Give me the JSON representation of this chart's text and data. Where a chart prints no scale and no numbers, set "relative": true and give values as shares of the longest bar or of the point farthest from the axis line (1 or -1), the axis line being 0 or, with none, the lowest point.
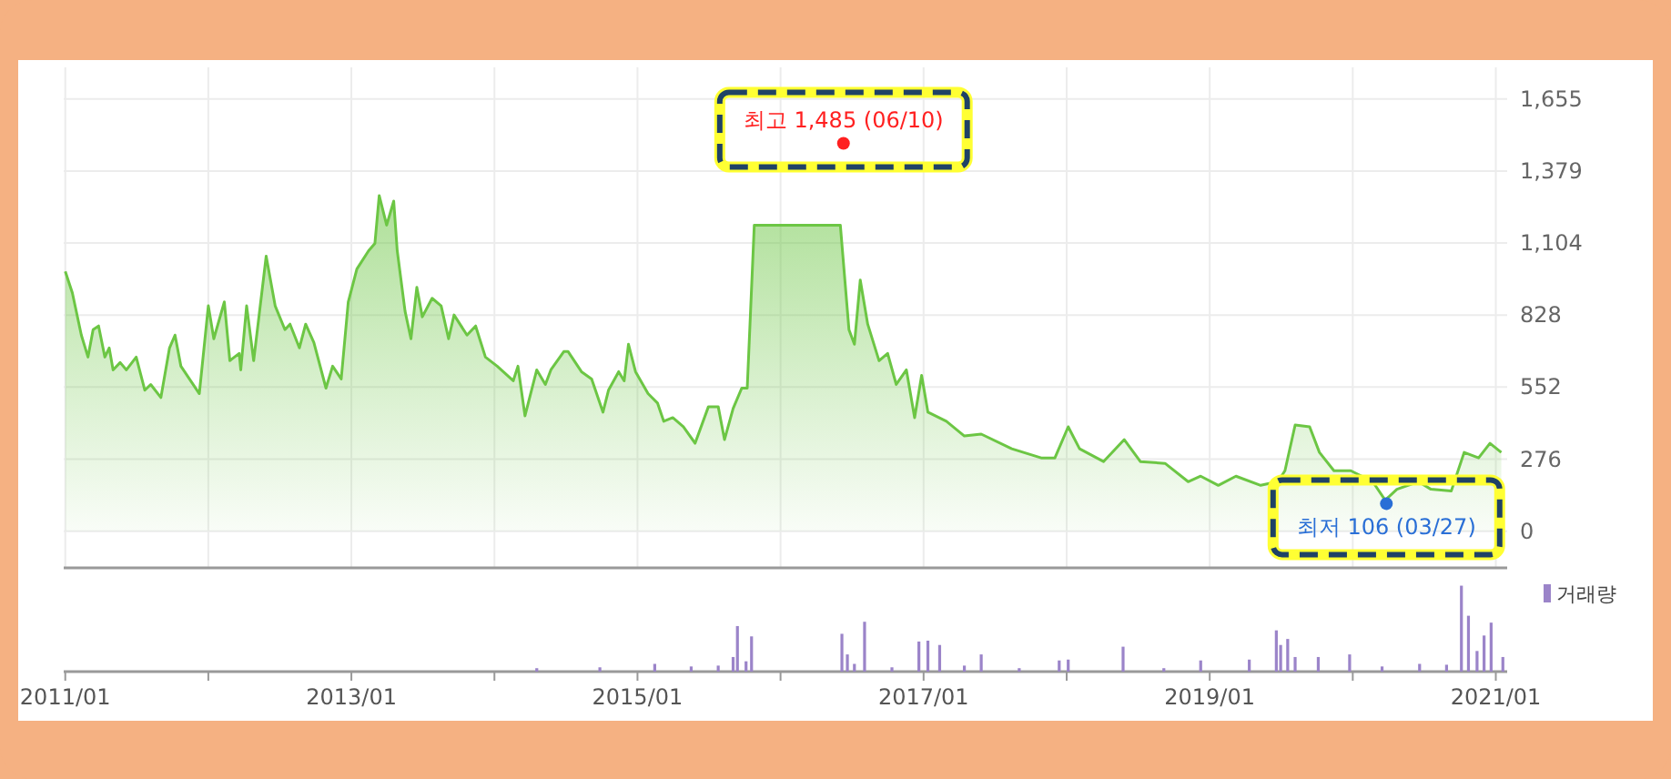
{
  "chart_data": [
    {
      "type": "area",
      "color": "#6cc644",
      "grid": true,
      "tick_labels": "y",
      "xlim": [
        "2010-12-28",
        "2021-01-30"
      ],
      "ylim": [
        -140,
        1776
      ],
      "xticks": [
        {
          "value": "2011-01-01",
          "label": null
        },
        {
          "value": "2012-01-01",
          "label": null
        },
        {
          "value": "2013-01-01",
          "label": null
        },
        {
          "value": "2014-01-01",
          "label": null
        },
        {
          "value": "2015-01-01",
          "label": null
        },
        {
          "value": "2016-01-01",
          "label": null
        },
        {
          "value": "2017-01-01",
          "label": null
        },
        {
          "value": "2018-01-01",
          "label": null
        },
        {
          "value": "2019-01-01",
          "label": null
        },
        {
          "value": "2020-01-01",
          "label": null
        },
        {
          "value": "2021-01-01",
          "label": null
        }
      ],
      "yticks": [
        {
          "value": 0,
          "label": "0"
        },
        {
          "value": 276,
          "label": "276"
        },
        {
          "value": 552,
          "label": "552"
        },
        {
          "value": 828,
          "label": "828"
        },
        {
          "value": 1104,
          "label": "1,104"
        },
        {
          "value": 1379,
          "label": "1,379"
        },
        {
          "value": 1655,
          "label": "1,655"
        }
      ],
      "x": [
        "2011-01-01",
        "2011-01-19",
        "2011-02-11",
        "2011-02-28",
        "2011-03-13",
        "2011-03-27",
        "2011-04-12",
        "2011-04-23",
        "2011-05-03",
        "2011-05-21",
        "2011-06-06",
        "2011-07-01",
        "2011-07-23",
        "2011-08-07",
        "2011-09-02",
        "2011-09-24",
        "2011-10-08",
        "2011-10-23",
        "2011-12-09",
        "2012-01-01",
        "2012-01-15",
        "2012-02-11",
        "2012-02-25",
        "2012-03-20",
        "2012-03-24",
        "2012-04-08",
        "2012-04-26",
        "2012-05-28",
        "2012-06-20",
        "2012-07-15",
        "2012-07-28",
        "2012-08-21",
        "2012-09-06",
        "2012-09-27",
        "2012-10-28",
        "2012-11-14",
        "2012-12-06",
        "2012-12-24",
        "2013-01-15",
        "2013-02-14",
        "2013-03-02",
        "2013-03-13",
        "2013-04-01",
        "2013-04-19",
        "2013-04-28",
        "2013-05-18",
        "2013-06-02",
        "2013-06-17",
        "2013-07-01",
        "2013-07-26",
        "2013-08-18",
        "2013-09-06",
        "2013-09-20",
        "2013-10-23",
        "2013-11-14",
        "2013-12-09",
        "2014-01-08",
        "2014-02-18",
        "2014-03-02",
        "2014-03-20",
        "2014-04-19",
        "2014-05-11",
        "2014-05-25",
        "2014-06-27",
        "2014-07-08",
        "2014-08-11",
        "2014-09-06",
        "2014-10-05",
        "2014-10-19",
        "2014-11-14",
        "2014-11-28",
        "2014-12-09",
        "2014-12-27",
        "2015-01-28",
        "2015-02-21",
        "2015-03-09",
        "2015-04-01",
        "2015-04-28",
        "2015-05-28",
        "2015-07-01",
        "2015-07-26",
        "2015-08-11",
        "2015-09-02",
        "2015-09-24",
        "2015-10-08",
        "2015-10-26",
        "2016-06-02",
        "2016-06-24",
        "2016-07-08",
        "2016-07-23",
        "2016-08-11",
        "2016-09-09",
        "2016-10-01",
        "2016-10-23",
        "2016-11-18",
        "2016-12-09",
        "2016-12-27",
        "2017-01-12",
        "2017-02-28",
        "2017-04-15",
        "2017-05-28",
        "2017-08-14",
        "2017-10-28",
        "2017-12-02",
        "2018-01-05",
        "2018-02-03",
        "2018-04-05",
        "2018-05-28",
        "2018-07-08",
        "2018-09-09",
        "2018-11-07",
        "2018-12-09",
        "2019-01-23",
        "2019-03-09",
        "2019-05-11",
        "2019-06-24",
        "2019-07-12",
        "2019-08-07",
        "2019-09-13",
        "2019-10-08",
        "2019-11-14",
        "2019-12-27",
        "2020-02-21",
        "2020-03-24",
        "2020-04-23",
        "2020-06-17",
        "2020-07-19",
        "2020-09-09",
        "2020-10-12",
        "2020-11-18",
        "2020-12-17",
        "2021-01-15"
      ],
      "values": [
        995,
        913,
        751,
        667,
        772,
        786,
        667,
        702,
        618,
        646,
        618,
        667,
        540,
        562,
        512,
        702,
        751,
        632,
        527,
        863,
        737,
        878,
        653,
        681,
        618,
        863,
        653,
        1053,
        863,
        772,
        793,
        702,
        793,
        723,
        548,
        632,
        583,
        878,
        1004,
        1074,
        1102,
        1285,
        1172,
        1264,
        1074,
        842,
        737,
        934,
        821,
        892,
        863,
        737,
        828,
        751,
        786,
        667,
        632,
        576,
        632,
        442,
        618,
        562,
        618,
        688,
        688,
        611,
        583,
        456,
        540,
        611,
        576,
        716,
        611,
        527,
        491,
        421,
        435,
        400,
        337,
        477,
        477,
        351,
        470,
        548,
        548,
        1172,
        1172,
        772,
        716,
        962,
        793,
        653,
        681,
        562,
        618,
        435,
        597,
        456,
        421,
        365,
        372,
        316,
        281,
        281,
        400,
        316,
        267,
        351,
        267,
        260,
        190,
        211,
        176,
        211,
        176,
        190,
        232,
        407,
        400,
        302,
        232,
        232,
        190,
        119,
        161,
        190,
        161,
        154,
        302,
        281,
        337,
        302
      ],
      "annotations": [
        {
          "text": "최고 1,485 (06/10)",
          "x": "2016-06-10",
          "y": 1485
        },
        {
          "text": "최저 106 (03/27)",
          "x": "2020-03-27",
          "y": 106
        }
      ]
    },
    {
      "type": "bar",
      "relative": true,
      "tick_labels": "x",
      "legend": "top right",
      "xlim": [
        "2010-12-28",
        "2021-01-30"
      ],
      "xticks": [
        {
          "value": "2011-01-01",
          "label": "2011/01"
        },
        {
          "value": "2012-01-01",
          "label": null
        },
        {
          "value": "2013-01-01",
          "label": "2013/01"
        },
        {
          "value": "2014-01-01",
          "label": null
        },
        {
          "value": "2015-01-01",
          "label": "2015/01"
        },
        {
          "value": "2016-01-01",
          "label": null
        },
        {
          "value": "2017-01-01",
          "label": "2017/01"
        },
        {
          "value": "2018-01-01",
          "label": null
        },
        {
          "value": "2019-01-01",
          "label": "2019/01"
        },
        {
          "value": "2020-01-01",
          "label": null
        },
        {
          "value": "2021-01-01",
          "label": "2021/01"
        }
      ],
      "series": [
        {
          "name": "거래량",
          "color": "#9b84c9",
          "x": [
            "2014-04-19",
            "2014-09-27",
            "2015-02-14",
            "2015-05-18",
            "2015-07-26",
            "2015-09-02",
            "2015-09-13",
            "2015-10-05",
            "2015-10-19",
            "2016-06-06",
            "2016-06-20",
            "2016-07-08",
            "2016-08-03",
            "2016-10-12",
            "2016-12-20",
            "2017-01-12",
            "2017-02-11",
            "2017-04-15",
            "2017-05-28",
            "2017-09-02",
            "2017-12-13",
            "2018-01-05",
            "2018-05-25",
            "2018-09-06",
            "2018-12-09",
            "2019-04-12",
            "2019-06-20",
            "2019-07-01",
            "2019-07-19",
            "2019-08-07",
            "2019-10-05",
            "2019-12-24",
            "2020-03-16",
            "2020-06-20",
            "2020-08-28",
            "2020-10-05",
            "2020-10-23",
            "2020-11-14",
            "2020-12-02",
            "2020-12-20",
            "2021-01-19"
          ],
          "values": [
            0.04,
            0.05,
            0.09,
            0.06,
            0.07,
            0.17,
            0.53,
            0.12,
            0.41,
            0.44,
            0.2,
            0.09,
            0.58,
            0.05,
            0.35,
            0.36,
            0.31,
            0.07,
            0.2,
            0.04,
            0.13,
            0.14,
            0.29,
            0.04,
            0.13,
            0.14,
            0.48,
            0.31,
            0.38,
            0.17,
            0.17,
            0.2,
            0.06,
            0.09,
            0.08,
            1,
            0.65,
            0.24,
            0.42,
            0.57,
            0.17
          ]
        }
      ]
    }
  ]
}
